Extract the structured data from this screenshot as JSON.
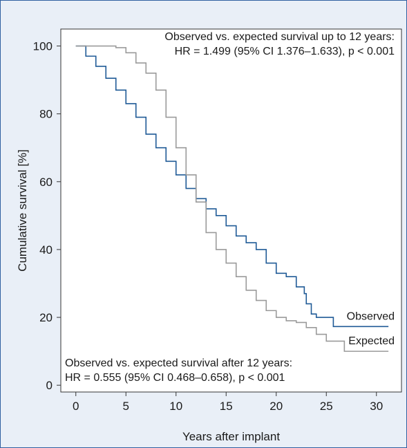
{
  "chart_data": {
    "type": "line",
    "xlabel": "Years after implant",
    "ylabel": "Cumulative survival [%]",
    "xlim": [
      -1.5,
      32.5
    ],
    "ylim": [
      -2,
      105
    ],
    "x_ticks": [
      0,
      5,
      10,
      15,
      20,
      25,
      30
    ],
    "y_ticks": [
      0,
      20,
      40,
      60,
      80,
      100
    ],
    "grid": false,
    "legend": "right",
    "annotations": [
      {
        "position": "top-right",
        "lines": [
          "Observed vs. expected survival up to 12 years:",
          "HR = 1.499 (95% CI 1.376–1.633), p < 0.001"
        ]
      },
      {
        "position": "bottom-left",
        "lines": [
          "Observed vs. expected survival after 12 years:",
          "HR = 0.555 (95% CI 0.468–0.658), p < 0.001"
        ]
      }
    ],
    "series": [
      {
        "name": "Observed",
        "color": "#1f5a96",
        "step": true,
        "points": [
          [
            0,
            100
          ],
          [
            1,
            97
          ],
          [
            2,
            94
          ],
          [
            3,
            90.5
          ],
          [
            4,
            87
          ],
          [
            5,
            83
          ],
          [
            6,
            79
          ],
          [
            7,
            74
          ],
          [
            8,
            70
          ],
          [
            9,
            66
          ],
          [
            10,
            62
          ],
          [
            11,
            58
          ],
          [
            12,
            55
          ],
          [
            13,
            52
          ],
          [
            14,
            50
          ],
          [
            15,
            47
          ],
          [
            16,
            44
          ],
          [
            17,
            42
          ],
          [
            18,
            40
          ],
          [
            19,
            36
          ],
          [
            20,
            33
          ],
          [
            21,
            32
          ],
          [
            22,
            29
          ],
          [
            22.8,
            27
          ],
          [
            23,
            24
          ],
          [
            23.5,
            21
          ],
          [
            24,
            20
          ],
          [
            25.5,
            20
          ],
          [
            25.7,
            17.3
          ],
          [
            31.2,
            17.3
          ]
        ]
      },
      {
        "name": "Expected",
        "color": "#9a9a9a",
        "step": true,
        "points": [
          [
            0,
            100
          ],
          [
            3,
            100
          ],
          [
            4,
            99.5
          ],
          [
            5,
            98
          ],
          [
            6,
            95
          ],
          [
            7,
            92
          ],
          [
            8,
            87
          ],
          [
            9,
            79
          ],
          [
            10,
            70
          ],
          [
            11,
            62
          ],
          [
            12,
            54
          ],
          [
            13,
            45
          ],
          [
            14,
            40
          ],
          [
            15,
            36
          ],
          [
            16,
            32
          ],
          [
            17,
            28
          ],
          [
            18,
            25
          ],
          [
            19,
            22
          ],
          [
            20,
            20
          ],
          [
            21,
            19
          ],
          [
            22,
            18.5
          ],
          [
            23,
            17
          ],
          [
            24,
            15
          ],
          [
            25,
            13
          ],
          [
            26.8,
            10
          ],
          [
            31.2,
            10
          ]
        ]
      }
    ]
  }
}
